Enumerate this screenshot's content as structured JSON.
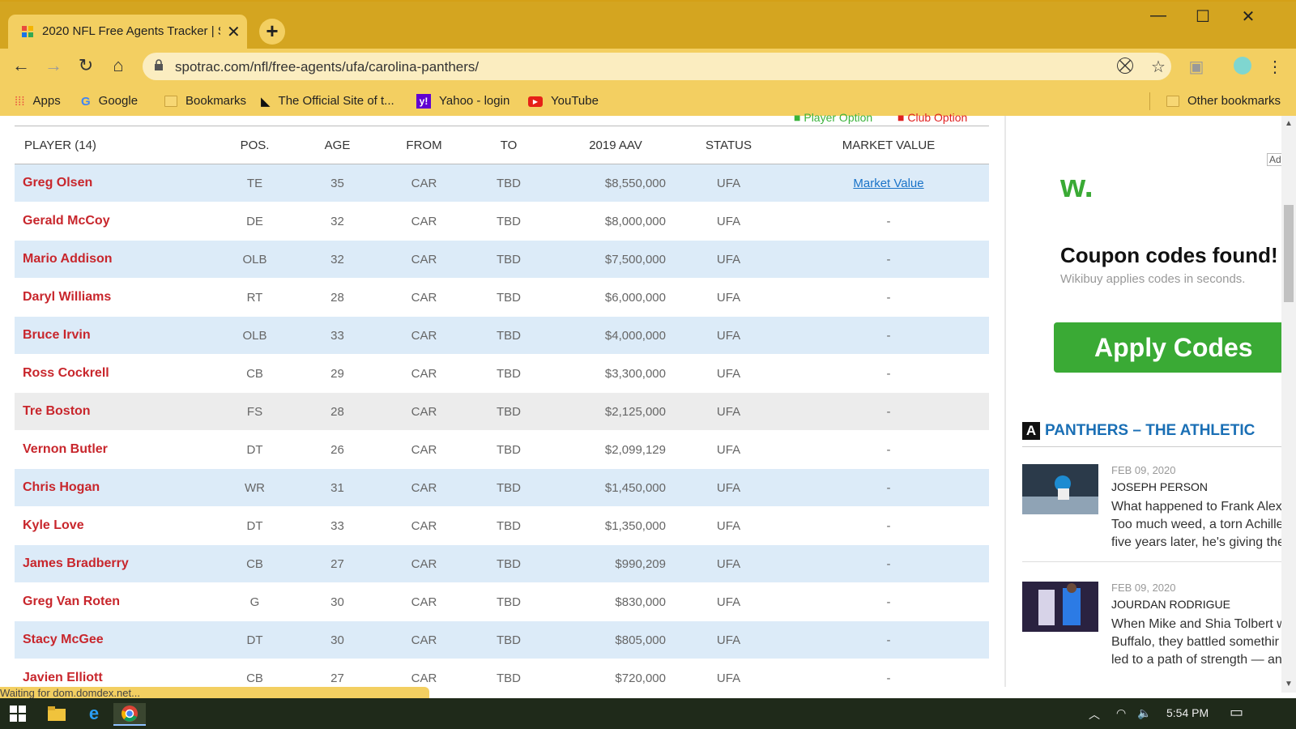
{
  "browser": {
    "tab_title": "2020 NFL Free Agents Tracker | Sp",
    "url": "spotrac.com/nfl/free-agents/ufa/carolina-panthers/",
    "bookmarks": [
      {
        "label": "Apps"
      },
      {
        "label": "Google"
      },
      {
        "label": "Bookmarks"
      },
      {
        "label": "The Official Site of t..."
      },
      {
        "label": "Yahoo - login"
      },
      {
        "label": "YouTube"
      }
    ],
    "other_bookmarks": "Other bookmarks"
  },
  "legend": {
    "player_option": "Player Option",
    "club_option": "Club Option"
  },
  "table": {
    "headers": {
      "player": "PLAYER (14)",
      "pos": "POS.",
      "age": "AGE",
      "from": "FROM",
      "to": "TO",
      "aav": "2019 AAV",
      "status": "STATUS",
      "market_value": "MARKET VALUE"
    },
    "rows": [
      {
        "name": "Greg Olsen",
        "pos": "TE",
        "age": "35",
        "from": "CAR",
        "to": "TBD",
        "aav": "$8,550,000",
        "status": "UFA",
        "mv": "Market Value"
      },
      {
        "name": "Gerald McCoy",
        "pos": "DE",
        "age": "32",
        "from": "CAR",
        "to": "TBD",
        "aav": "$8,000,000",
        "status": "UFA",
        "mv": "-"
      },
      {
        "name": "Mario Addison",
        "pos": "OLB",
        "age": "32",
        "from": "CAR",
        "to": "TBD",
        "aav": "$7,500,000",
        "status": "UFA",
        "mv": "-"
      },
      {
        "name": "Daryl Williams",
        "pos": "RT",
        "age": "28",
        "from": "CAR",
        "to": "TBD",
        "aav": "$6,000,000",
        "status": "UFA",
        "mv": "-"
      },
      {
        "name": "Bruce Irvin",
        "pos": "OLB",
        "age": "33",
        "from": "CAR",
        "to": "TBD",
        "aav": "$4,000,000",
        "status": "UFA",
        "mv": "-"
      },
      {
        "name": "Ross Cockrell",
        "pos": "CB",
        "age": "29",
        "from": "CAR",
        "to": "TBD",
        "aav": "$3,300,000",
        "status": "UFA",
        "mv": "-"
      },
      {
        "name": "Tre Boston",
        "pos": "FS",
        "age": "28",
        "from": "CAR",
        "to": "TBD",
        "aav": "$2,125,000",
        "status": "UFA",
        "mv": "-"
      },
      {
        "name": "Vernon Butler",
        "pos": "DT",
        "age": "26",
        "from": "CAR",
        "to": "TBD",
        "aav": "$2,099,129",
        "status": "UFA",
        "mv": "-"
      },
      {
        "name": "Chris Hogan",
        "pos": "WR",
        "age": "31",
        "from": "CAR",
        "to": "TBD",
        "aav": "$1,450,000",
        "status": "UFA",
        "mv": "-"
      },
      {
        "name": "Kyle Love",
        "pos": "DT",
        "age": "33",
        "from": "CAR",
        "to": "TBD",
        "aav": "$1,350,000",
        "status": "UFA",
        "mv": "-"
      },
      {
        "name": "James Bradberry",
        "pos": "CB",
        "age": "27",
        "from": "CAR",
        "to": "TBD",
        "aav": "$990,209",
        "status": "UFA",
        "mv": "-"
      },
      {
        "name": "Greg Van Roten",
        "pos": "G",
        "age": "30",
        "from": "CAR",
        "to": "TBD",
        "aav": "$830,000",
        "status": "UFA",
        "mv": "-"
      },
      {
        "name": "Stacy McGee",
        "pos": "DT",
        "age": "30",
        "from": "CAR",
        "to": "TBD",
        "aav": "$805,000",
        "status": "UFA",
        "mv": "-"
      },
      {
        "name": "Javien Elliott",
        "pos": "CB",
        "age": "27",
        "from": "CAR",
        "to": "TBD",
        "aav": "$720,000",
        "status": "UFA",
        "mv": "-"
      }
    ]
  },
  "ad": {
    "logo": "w.",
    "headline": "Coupon codes found!",
    "sub": "Wikibuy applies codes in seconds.",
    "button": "Apply Codes",
    "badge": "Ad"
  },
  "athletic": {
    "badge": "A",
    "title": "PANTHERS – THE ATHLETIC",
    "stories": [
      {
        "date": "FEB 09, 2020",
        "author": "JOSEPH PERSON",
        "lines": [
          "What happened to Frank Alex",
          "Too much weed, a torn Achille",
          "five years later, he's giving the"
        ]
      },
      {
        "date": "FEB 09, 2020",
        "author": "JOURDAN RODRIGUE",
        "lines": [
          "When Mike and Shia Tolbert w",
          "Buffalo, they battled somethir",
          "led to a path of strength — an"
        ]
      }
    ]
  },
  "status_text": "Waiting for dom.domdex.net...",
  "taskbar": {
    "time": "5:54 PM"
  },
  "colors": {
    "chrome": "#d4a520",
    "accent_red": "#c8262c",
    "row_alt": "#dcebf8",
    "ad_green": "#3aaa35",
    "athletic_blue": "#1a6fb5"
  }
}
